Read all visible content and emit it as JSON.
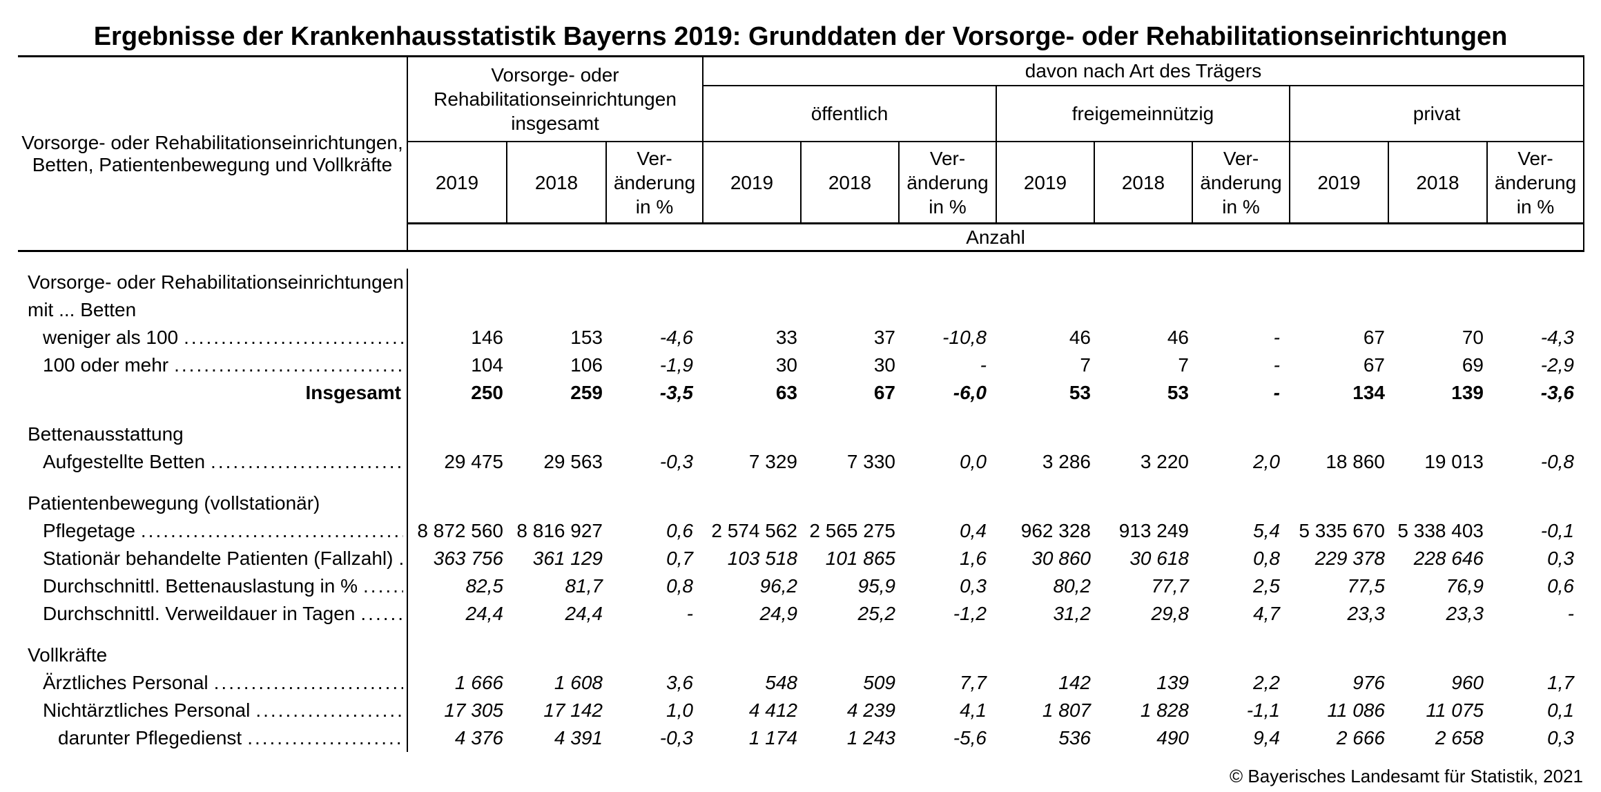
{
  "title": "Ergebnisse der Krankenhausstatistik Bayerns 2019: Grunddaten der Vorsorge- oder Rehabilitationseinrichtungen",
  "header": {
    "row_label": [
      "Vorsorge- oder Rehabilitationseinrichtungen,",
      "Betten, Patientenbewegung und Vollkräfte"
    ],
    "group_total": [
      "Vorsorge- oder",
      "Rehabilitationseinrichtungen",
      "insgesamt"
    ],
    "davon_label": "davon nach Art des Trägers",
    "subgroups": [
      "öffentlich",
      "freigemeinnützig",
      "privat"
    ],
    "col_2019": "2019",
    "col_2018": "2018",
    "col_ver": [
      "Ver-",
      "änderung",
      "in %"
    ],
    "unit_label": "Anzahl"
  },
  "body": {
    "rows": [
      {
        "type": "section",
        "label": "Vorsorge- oder Rehabilitationseinrichtungen"
      },
      {
        "type": "section",
        "label": "mit ... Betten"
      },
      {
        "type": "item",
        "label": "weniger als 100",
        "values": [
          "146",
          "153",
          "-4,6",
          "33",
          "37",
          "-10,8",
          "46",
          "46",
          "-",
          "67",
          "70",
          "-4,3"
        ]
      },
      {
        "type": "item",
        "label": "100 oder mehr",
        "values": [
          "104",
          "106",
          "-1,9",
          "30",
          "30",
          "-",
          "7",
          "7",
          "-",
          "67",
          "69",
          "-2,9"
        ]
      },
      {
        "type": "total",
        "label": "Insgesamt",
        "values": [
          "250",
          "259",
          "-3,5",
          "63",
          "67",
          "-6,0",
          "53",
          "53",
          "-",
          "134",
          "139",
          "-3,6"
        ]
      },
      {
        "type": "spacer"
      },
      {
        "type": "section",
        "label": "Bettenausstattung"
      },
      {
        "type": "item",
        "label": "Aufgestellte Betten",
        "values": [
          "29 475",
          "29 563",
          "-0,3",
          "7 329",
          "7 330",
          "0,0",
          "3 286",
          "3 220",
          "2,0",
          "18 860",
          "19 013",
          "-0,8"
        ]
      },
      {
        "type": "spacer"
      },
      {
        "type": "section",
        "label": "Patientenbewegung (vollstationär)"
      },
      {
        "type": "item",
        "label": "Pflegetage",
        "values": [
          "8 872 560",
          "8 816 927",
          "0,6",
          "2 574 562",
          "2 565 275",
          "0,4",
          "962 328",
          "913 249",
          "5,4",
          "5 335 670",
          "5 338 403",
          "-0,1"
        ]
      },
      {
        "type": "item-italic",
        "label": "Stationär behandelte Patienten (Fallzahl)",
        "values": [
          "363 756",
          "361 129",
          "0,7",
          "103 518",
          "101 865",
          "1,6",
          "30 860",
          "30 618",
          "0,8",
          "229 378",
          "228 646",
          "0,3"
        ]
      },
      {
        "type": "item-italic",
        "label": "Durchschnittl. Bettenauslastung in %",
        "values": [
          "82,5",
          "81,7",
          "0,8",
          "96,2",
          "95,9",
          "0,3",
          "80,2",
          "77,7",
          "2,5",
          "77,5",
          "76,9",
          "0,6"
        ]
      },
      {
        "type": "item-italic",
        "label": "Durchschnittl. Verweildauer in Tagen",
        "values": [
          "24,4",
          "24,4",
          "-",
          "24,9",
          "25,2",
          "-1,2",
          "31,2",
          "29,8",
          "4,7",
          "23,3",
          "23,3",
          "-"
        ]
      },
      {
        "type": "spacer"
      },
      {
        "type": "section",
        "label": "Vollkräfte"
      },
      {
        "type": "item-italic",
        "label": "Ärztliches Personal",
        "values": [
          "1 666",
          "1 608",
          "3,6",
          "548",
          "509",
          "7,7",
          "142",
          "139",
          "2,2",
          "976",
          "960",
          "1,7"
        ]
      },
      {
        "type": "item-italic",
        "label": "Nichtärztliches Personal",
        "values": [
          "17 305",
          "17 142",
          "1,0",
          "4 412",
          "4 239",
          "4,1",
          "1 807",
          "1 828",
          "-1,1",
          "11 086",
          "11 075",
          "0,1"
        ]
      },
      {
        "type": "item-italic-deep",
        "label": "darunter Pflegedienst",
        "values": [
          "4 376",
          "4 391",
          "-0,3",
          "1 174",
          "1 243",
          "-5,6",
          "536",
          "490",
          "9,4",
          "2 666",
          "2 658",
          "0,3"
        ]
      }
    ]
  },
  "footer": {
    "text": "© Bayerisches Landesamt für Statistik, 2021"
  }
}
